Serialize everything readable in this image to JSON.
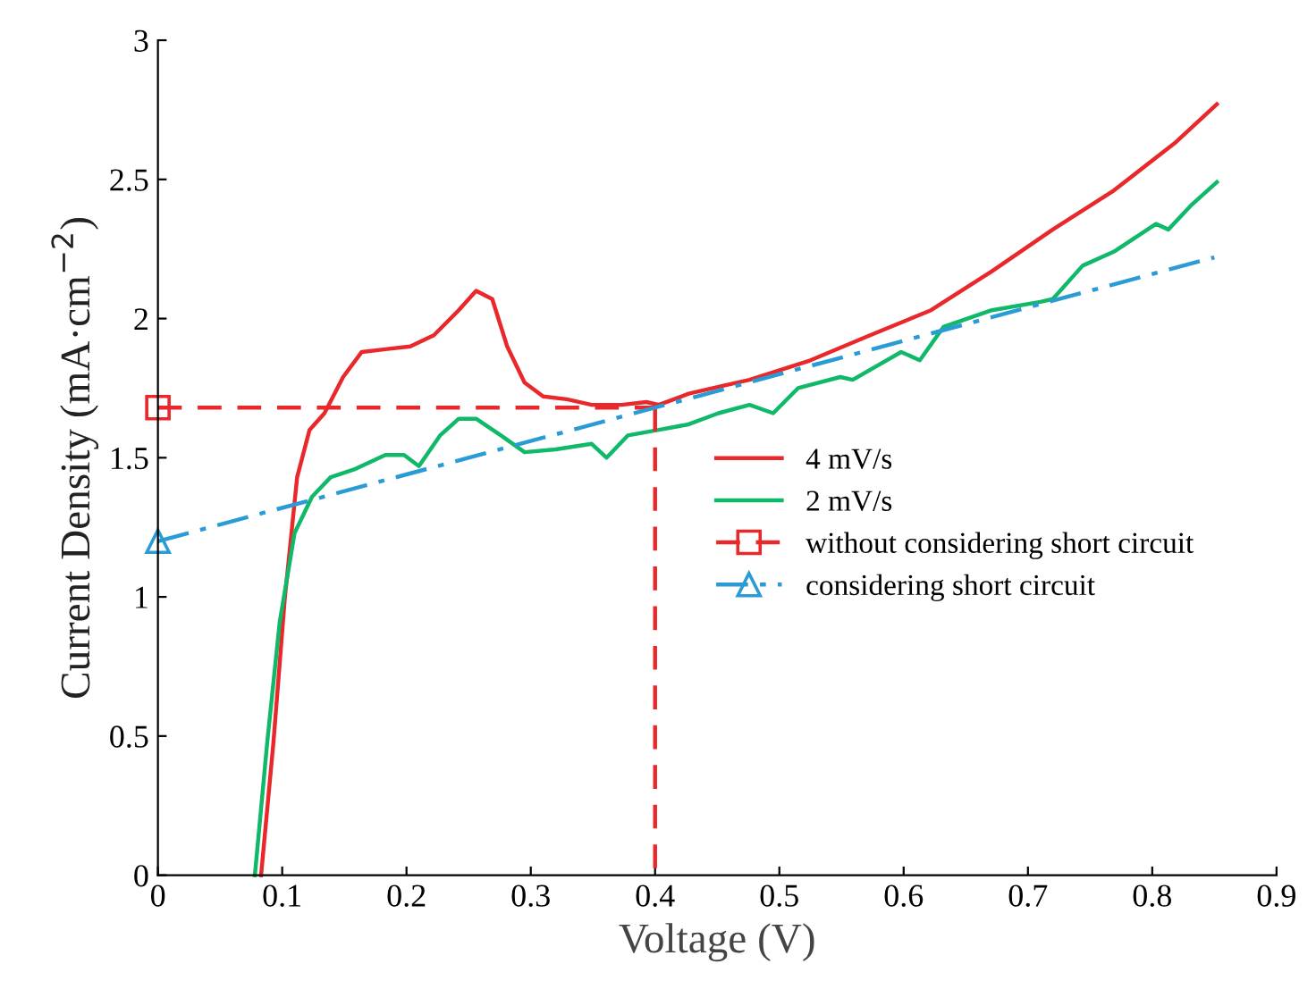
{
  "chart_data": {
    "type": "line",
    "xlabel": "Voltage (V)",
    "ylabel": "Current Density (mA·cm$^{−2}$)",
    "xlim": [
      0,
      0.9
    ],
    "ylim": [
      0,
      3
    ],
    "xticks": [
      0,
      0.1,
      0.2,
      0.3,
      0.4,
      0.5,
      0.6,
      0.7,
      0.8,
      0.9
    ],
    "yticks": [
      0,
      0.5,
      1,
      1.5,
      2,
      2.5,
      3
    ],
    "grid": false,
    "legend": "right",
    "line_style": "solid",
    "marker": "none",
    "series": [
      {
        "name": "4 mV/s",
        "color": "#e8282a",
        "x": [
          0.083,
          0.093,
          0.102,
          0.112,
          0.122,
          0.134,
          0.149,
          0.164,
          0.183,
          0.203,
          0.222,
          0.242,
          0.256,
          0.269,
          0.281,
          0.295,
          0.31,
          0.329,
          0.349,
          0.373,
          0.393,
          0.403,
          0.427,
          0.456,
          0.476,
          0.525,
          0.573,
          0.622,
          0.671,
          0.72,
          0.769,
          0.818,
          0.852
        ],
        "values": [
          0,
          0.48,
          0.99,
          1.43,
          1.6,
          1.66,
          1.79,
          1.88,
          1.89,
          1.9,
          1.94,
          2.03,
          2.1,
          2.07,
          1.9,
          1.77,
          1.72,
          1.71,
          1.69,
          1.69,
          1.7,
          1.69,
          1.73,
          1.76,
          1.78,
          1.85,
          1.94,
          2.03,
          2.17,
          2.32,
          2.46,
          2.63,
          2.77
        ]
      },
      {
        "name": "2 mV/s",
        "color": "#10b86a",
        "x": [
          0.078,
          0.088,
          0.098,
          0.11,
          0.124,
          0.139,
          0.159,
          0.183,
          0.198,
          0.21,
          0.227,
          0.242,
          0.256,
          0.276,
          0.295,
          0.32,
          0.349,
          0.361,
          0.378,
          0.403,
          0.427,
          0.451,
          0.476,
          0.495,
          0.515,
          0.549,
          0.559,
          0.598,
          0.613,
          0.632,
          0.671,
          0.71,
          0.72,
          0.744,
          0.769,
          0.803,
          0.813,
          0.832,
          0.852
        ],
        "values": [
          0,
          0.48,
          0.91,
          1.23,
          1.36,
          1.43,
          1.46,
          1.51,
          1.51,
          1.47,
          1.58,
          1.64,
          1.64,
          1.58,
          1.52,
          1.53,
          1.55,
          1.5,
          1.58,
          1.6,
          1.62,
          1.66,
          1.69,
          1.66,
          1.75,
          1.79,
          1.78,
          1.88,
          1.85,
          1.97,
          2.03,
          2.06,
          2.07,
          2.19,
          2.24,
          2.34,
          2.32,
          2.41,
          2.49
        ]
      },
      {
        "name": "without considering short circuit",
        "color": "#e8282a",
        "line_style": "dashed",
        "marker": "square",
        "x": [
          0,
          0.4
        ],
        "values": [
          1.68,
          1.68
        ]
      },
      {
        "color": "#e8282a",
        "line_style": "dashed",
        "x": [
          0.4,
          0.4
        ],
        "values": [
          1.68,
          0
        ]
      },
      {
        "name": "considering short circuit",
        "color": "#2a9bd4",
        "line_style": "dashdot",
        "marker": "triangle",
        "x": [
          0,
          0.85
        ],
        "values": [
          1.2,
          2.22
        ]
      }
    ]
  }
}
